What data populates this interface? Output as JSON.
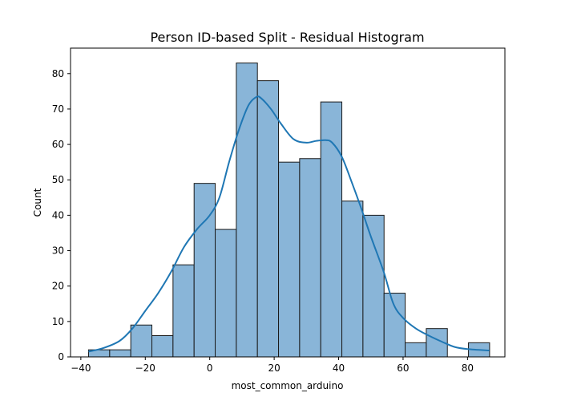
{
  "chart_data": {
    "type": "histogram",
    "title": "Person ID-based Split - Residual Histogram",
    "xlabel": "most_common_arduino",
    "ylabel": "Count",
    "xlim": [
      -43.2,
      91.6
    ],
    "ylim": [
      0,
      87.2
    ],
    "xticks": [
      -40,
      -20,
      0,
      20,
      40,
      60,
      80
    ],
    "yticks": [
      0,
      10,
      20,
      30,
      40,
      50,
      60,
      70,
      80
    ],
    "bin_width": 6.55,
    "bins": [
      {
        "x0": -37.6,
        "x1": -31.05,
        "count": 2
      },
      {
        "x0": -31.05,
        "x1": -24.5,
        "count": 2
      },
      {
        "x0": -24.5,
        "x1": -17.95,
        "count": 9
      },
      {
        "x0": -17.95,
        "x1": -11.4,
        "count": 6
      },
      {
        "x0": -11.4,
        "x1": -4.85,
        "count": 26
      },
      {
        "x0": -4.85,
        "x1": 1.7,
        "count": 49
      },
      {
        "x0": 1.7,
        "x1": 8.25,
        "count": 36
      },
      {
        "x0": 8.25,
        "x1": 14.8,
        "count": 83
      },
      {
        "x0": 14.8,
        "x1": 21.35,
        "count": 78
      },
      {
        "x0": 21.35,
        "x1": 27.9,
        "count": 55
      },
      {
        "x0": 27.9,
        "x1": 34.45,
        "count": 56
      },
      {
        "x0": 34.45,
        "x1": 41.0,
        "count": 72
      },
      {
        "x0": 41.0,
        "x1": 47.55,
        "count": 44
      },
      {
        "x0": 47.55,
        "x1": 54.1,
        "count": 40
      },
      {
        "x0": 54.1,
        "x1": 60.65,
        "count": 18
      },
      {
        "x0": 60.65,
        "x1": 67.2,
        "count": 4
      },
      {
        "x0": 67.2,
        "x1": 73.75,
        "count": 8
      },
      {
        "x0": 73.75,
        "x1": 80.3,
        "count": 0
      },
      {
        "x0": 80.3,
        "x1": 86.85,
        "count": 4
      }
    ],
    "kde": {
      "x": [
        -37.6,
        -33,
        -28,
        -24,
        -20,
        -16,
        -12,
        -8,
        -4,
        0,
        3,
        6,
        9,
        12,
        14.5,
        16,
        19,
        22,
        26,
        30,
        33,
        36,
        38,
        41,
        44,
        47,
        50,
        54,
        57,
        60,
        64,
        68,
        72,
        76,
        80,
        86.8
      ],
      "y": [
        1.5,
        2.5,
        4.5,
        8,
        13,
        18,
        24,
        31,
        36,
        40,
        45,
        55,
        64,
        71,
        73.4,
        73,
        70,
        66,
        61.5,
        60.5,
        61,
        61.2,
        60.5,
        56.5,
        49.5,
        42,
        34,
        24,
        15,
        11,
        8,
        6,
        4.3,
        2.8,
        2.2,
        1.8
      ]
    },
    "bar_color": "#89b5d8",
    "bar_edge_color": "#1a1a1a",
    "kde_color": "#1f77b4",
    "grid": false,
    "legend": "none"
  }
}
